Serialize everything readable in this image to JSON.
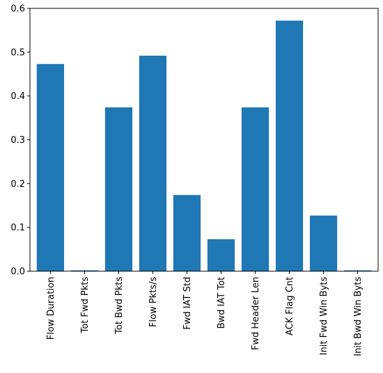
{
  "chart_data": {
    "type": "bar",
    "categories": [
      "Flow Duration",
      "Tot Fwd Pkts",
      "Tot Bwd Pkts",
      "Flow Pkts/s",
      "Fwd IAT Std",
      "Bwd IAT Tot",
      "Fwd Header Len",
      "ACK Flag Cnt",
      "Init Fwd Win Byts",
      "Init Bwd Win Byts"
    ],
    "values": [
      0.473,
      0.002,
      0.374,
      0.492,
      0.174,
      0.073,
      0.374,
      0.572,
      0.127,
      0.002
    ],
    "ylim": [
      0,
      0.6
    ],
    "yticks": [
      "0.0",
      "0.1",
      "0.2",
      "0.3",
      "0.4",
      "0.5",
      "0.6"
    ],
    "ytick_values": [
      0,
      0.1,
      0.2,
      0.3,
      0.4,
      0.5,
      0.6
    ],
    "grid": false,
    "bar_color": "#1f77b4",
    "title": "",
    "xlabel": "",
    "ylabel": ""
  }
}
